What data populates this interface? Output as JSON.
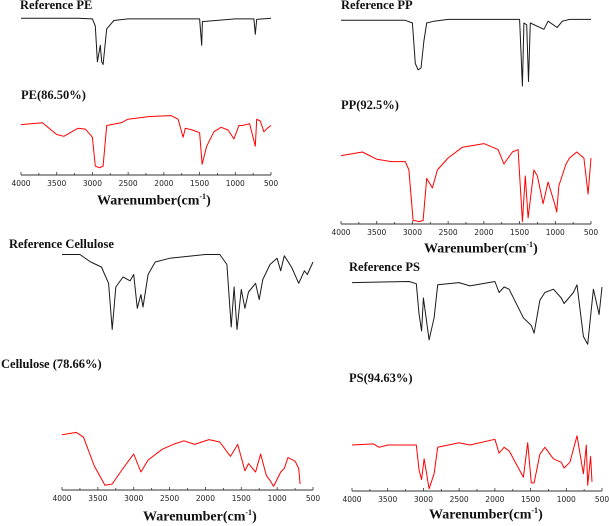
{
  "figure": {
    "xlabel_text": "Warenumber(cm",
    "xlabel_sup": "-1",
    "xlabel_close": ")",
    "colors": {
      "reference": "#1a1a1a",
      "sample": "#ff0000",
      "axis": "#333333"
    }
  },
  "chart_data": [
    {
      "type": "line",
      "panel": "PE",
      "xlabel": "Warenumber(cm-1)",
      "ylabel": "",
      "xlim": [
        4000,
        500
      ],
      "x_reversed": true,
      "xticks": [
        4000,
        3500,
        3000,
        2500,
        2000,
        1500,
        1000,
        500
      ],
      "grid": false,
      "legend": "inline labels above each trace",
      "series": [
        {
          "name": "Reference PE",
          "note": "relative transmittance (0=top of panel, 1=bottom), read from pixel position",
          "points": [
            [
              4000,
              0.06
            ],
            [
              3200,
              0.06
            ],
            [
              3000,
              0.07
            ],
            [
              2960,
              0.2
            ],
            [
              2930,
              0.85
            ],
            [
              2890,
              0.55
            ],
            [
              2870,
              0.85
            ],
            [
              2850,
              0.9
            ],
            [
              2800,
              0.25
            ],
            [
              2700,
              0.1
            ],
            [
              2500,
              0.07
            ],
            [
              1500,
              0.07
            ],
            [
              1470,
              0.55
            ],
            [
              1460,
              0.12
            ],
            [
              1000,
              0.07
            ],
            [
              740,
              0.07
            ],
            [
              720,
              0.35
            ],
            [
              700,
              0.08
            ],
            [
              500,
              0.06
            ]
          ]
        },
        {
          "name": "PE(86.50%)",
          "points": [
            [
              4000,
              0.44
            ],
            [
              3700,
              0.42
            ],
            [
              3500,
              0.55
            ],
            [
              3400,
              0.57
            ],
            [
              3200,
              0.48
            ],
            [
              3100,
              0.49
            ],
            [
              3000,
              0.58
            ],
            [
              2960,
              0.9
            ],
            [
              2900,
              0.92
            ],
            [
              2850,
              0.9
            ],
            [
              2800,
              0.45
            ],
            [
              2600,
              0.42
            ],
            [
              2500,
              0.38
            ],
            [
              2200,
              0.35
            ],
            [
              1900,
              0.34
            ],
            [
              1800,
              0.38
            ],
            [
              1730,
              0.58
            ],
            [
              1700,
              0.48
            ],
            [
              1600,
              0.5
            ],
            [
              1500,
              0.53
            ],
            [
              1465,
              0.88
            ],
            [
              1400,
              0.68
            ],
            [
              1300,
              0.52
            ],
            [
              1200,
              0.47
            ],
            [
              1100,
              0.5
            ],
            [
              1020,
              0.6
            ],
            [
              950,
              0.45
            ],
            [
              900,
              0.45
            ],
            [
              800,
              0.43
            ],
            [
              720,
              0.68
            ],
            [
              700,
              0.38
            ],
            [
              650,
              0.4
            ],
            [
              600,
              0.52
            ],
            [
              550,
              0.48
            ],
            [
              500,
              0.45
            ]
          ]
        }
      ]
    },
    {
      "type": "line",
      "panel": "PP",
      "xlabel": "Warenumber(cm-1)",
      "xlim": [
        4000,
        500
      ],
      "x_reversed": true,
      "xticks": [
        4000,
        3500,
        3000,
        2500,
        2000,
        1500,
        1000,
        500
      ],
      "grid": false,
      "series": [
        {
          "name": "Reference PP",
          "points": [
            [
              4000,
              0.07
            ],
            [
              3100,
              0.07
            ],
            [
              3000,
              0.1
            ],
            [
              2960,
              0.55
            ],
            [
              2920,
              0.62
            ],
            [
              2880,
              0.6
            ],
            [
              2840,
              0.3
            ],
            [
              2800,
              0.1
            ],
            [
              2700,
              0.08
            ],
            [
              2500,
              0.06
            ],
            [
              1500,
              0.06
            ],
            [
              1460,
              0.8
            ],
            [
              1440,
              0.1
            ],
            [
              1400,
              0.12
            ],
            [
              1375,
              0.75
            ],
            [
              1350,
              0.1
            ],
            [
              1160,
              0.17
            ],
            [
              1100,
              0.08
            ],
            [
              975,
              0.15
            ],
            [
              900,
              0.08
            ],
            [
              800,
              0.06
            ],
            [
              500,
              0.06
            ]
          ]
        },
        {
          "name": "PP(92.5%)",
          "points": [
            [
              4000,
              0.43
            ],
            [
              3700,
              0.4
            ],
            [
              3500,
              0.46
            ],
            [
              3300,
              0.48
            ],
            [
              3100,
              0.48
            ],
            [
              3050,
              0.55
            ],
            [
              2990,
              0.97
            ],
            [
              2900,
              0.98
            ],
            [
              2850,
              0.97
            ],
            [
              2800,
              0.62
            ],
            [
              2720,
              0.7
            ],
            [
              2650,
              0.55
            ],
            [
              2500,
              0.45
            ],
            [
              2300,
              0.36
            ],
            [
              2000,
              0.33
            ],
            [
              1800,
              0.38
            ],
            [
              1720,
              0.5
            ],
            [
              1600,
              0.4
            ],
            [
              1520,
              0.38
            ],
            [
              1460,
              0.98
            ],
            [
              1420,
              0.6
            ],
            [
              1380,
              0.95
            ],
            [
              1300,
              0.55
            ],
            [
              1250,
              0.6
            ],
            [
              1170,
              0.83
            ],
            [
              1100,
              0.65
            ],
            [
              1000,
              0.85
            ],
            [
              980,
              0.9
            ],
            [
              950,
              0.68
            ],
            [
              850,
              0.5
            ],
            [
              800,
              0.45
            ],
            [
              700,
              0.4
            ],
            [
              600,
              0.45
            ],
            [
              540,
              0.75
            ],
            [
              500,
              0.45
            ]
          ]
        }
      ]
    },
    {
      "type": "line",
      "panel": "Cellulose",
      "xlabel": "Warenumber(cm-1)",
      "xlim": [
        4000,
        500
      ],
      "x_reversed": true,
      "xticks": [
        4000,
        3500,
        3000,
        2500,
        2000,
        1500,
        1000,
        500
      ],
      "grid": false,
      "series": [
        {
          "name": "Reference Cellulose",
          "points": [
            [
              4000,
              0.02
            ],
            [
              3750,
              0.02
            ],
            [
              3600,
              0.08
            ],
            [
              3450,
              0.12
            ],
            [
              3350,
              0.25
            ],
            [
              3300,
              0.62
            ],
            [
              3250,
              0.28
            ],
            [
              3150,
              0.2
            ],
            [
              3050,
              0.23
            ],
            [
              3000,
              0.18
            ],
            [
              2950,
              0.45
            ],
            [
              2900,
              0.34
            ],
            [
              2870,
              0.44
            ],
            [
              2800,
              0.18
            ],
            [
              2700,
              0.08
            ],
            [
              2500,
              0.05
            ],
            [
              2000,
              0.02
            ],
            [
              1800,
              0.02
            ],
            [
              1700,
              0.1
            ],
            [
              1640,
              0.6
            ],
            [
              1600,
              0.28
            ],
            [
              1560,
              0.62
            ],
            [
              1500,
              0.3
            ],
            [
              1450,
              0.45
            ],
            [
              1400,
              0.32
            ],
            [
              1300,
              0.25
            ],
            [
              1250,
              0.38
            ],
            [
              1200,
              0.22
            ],
            [
              1100,
              0.1
            ],
            [
              1000,
              0.05
            ],
            [
              950,
              0.15
            ],
            [
              900,
              0.03
            ],
            [
              800,
              0.12
            ],
            [
              700,
              0.25
            ],
            [
              620,
              0.15
            ],
            [
              580,
              0.18
            ],
            [
              500,
              0.08
            ]
          ]
        },
        {
          "name": "Cellulose (78.66%)",
          "points": [
            [
              4000,
              0.54
            ],
            [
              3800,
              0.52
            ],
            [
              3700,
              0.56
            ],
            [
              3550,
              0.8
            ],
            [
              3400,
              0.96
            ],
            [
              3300,
              0.95
            ],
            [
              3150,
              0.82
            ],
            [
              3000,
              0.7
            ],
            [
              2900,
              0.85
            ],
            [
              2800,
              0.75
            ],
            [
              2600,
              0.66
            ],
            [
              2450,
              0.62
            ],
            [
              2300,
              0.59
            ],
            [
              2150,
              0.62
            ],
            [
              1950,
              0.58
            ],
            [
              1800,
              0.6
            ],
            [
              1650,
              0.72
            ],
            [
              1550,
              0.62
            ],
            [
              1450,
              0.84
            ],
            [
              1400,
              0.78
            ],
            [
              1300,
              0.85
            ],
            [
              1230,
              0.7
            ],
            [
              1150,
              0.88
            ],
            [
              1100,
              0.92
            ],
            [
              1050,
              0.97
            ],
            [
              950,
              0.85
            ],
            [
              900,
              0.82
            ],
            [
              850,
              0.73
            ],
            [
              750,
              0.76
            ],
            [
              700,
              0.82
            ],
            [
              680,
              0.95
            ]
          ]
        }
      ]
    },
    {
      "type": "line",
      "panel": "PS",
      "xlabel": "Warenumber(cm-1)",
      "xlim": [
        4000,
        500
      ],
      "x_reversed": true,
      "xticks": [
        4000,
        3500,
        3000,
        2500,
        2000,
        1500,
        1000,
        500
      ],
      "grid": false,
      "series": [
        {
          "name": "Reference PS",
          "points": [
            [
              4000,
              0.06
            ],
            [
              3200,
              0.05
            ],
            [
              3100,
              0.07
            ],
            [
              3060,
              0.35
            ],
            [
              3025,
              0.5
            ],
            [
              3000,
              0.2
            ],
            [
              2920,
              0.58
            ],
            [
              2850,
              0.38
            ],
            [
              2800,
              0.08
            ],
            [
              2500,
              0.06
            ],
            [
              2350,
              0.09
            ],
            [
              2000,
              0.05
            ],
            [
              1940,
              0.15
            ],
            [
              1870,
              0.1
            ],
            [
              1800,
              0.12
            ],
            [
              1600,
              0.38
            ],
            [
              1490,
              0.45
            ],
            [
              1450,
              0.52
            ],
            [
              1370,
              0.22
            ],
            [
              1300,
              0.15
            ],
            [
              1180,
              0.12
            ],
            [
              1070,
              0.2
            ],
            [
              1030,
              0.25
            ],
            [
              900,
              0.15
            ],
            [
              850,
              0.08
            ],
            [
              760,
              0.55
            ],
            [
              700,
              0.62
            ],
            [
              620,
              0.12
            ],
            [
              540,
              0.35
            ],
            [
              500,
              0.1
            ]
          ]
        },
        {
          "name": "PS(94.63%)",
          "points": [
            [
              4000,
              0.6
            ],
            [
              3700,
              0.59
            ],
            [
              3620,
              0.62
            ],
            [
              3500,
              0.6
            ],
            [
              3100,
              0.6
            ],
            [
              3060,
              0.82
            ],
            [
              3025,
              0.9
            ],
            [
              2990,
              0.72
            ],
            [
              2920,
              0.98
            ],
            [
              2850,
              0.85
            ],
            [
              2800,
              0.62
            ],
            [
              2500,
              0.58
            ],
            [
              2350,
              0.6
            ],
            [
              2000,
              0.55
            ],
            [
              1940,
              0.67
            ],
            [
              1870,
              0.62
            ],
            [
              1800,
              0.65
            ],
            [
              1600,
              0.88
            ],
            [
              1540,
              0.58
            ],
            [
              1490,
              0.93
            ],
            [
              1450,
              0.93
            ],
            [
              1370,
              0.68
            ],
            [
              1300,
              0.62
            ],
            [
              1180,
              0.72
            ],
            [
              1070,
              0.75
            ],
            [
              1030,
              0.8
            ],
            [
              950,
              0.75
            ],
            [
              850,
              0.52
            ],
            [
              760,
              0.85
            ],
            [
              720,
              0.6
            ],
            [
              700,
              0.95
            ],
            [
              660,
              0.7
            ],
            [
              640,
              0.92
            ]
          ]
        }
      ]
    }
  ],
  "panels": [
    {
      "id": "pe",
      "ref_title": "Reference PE",
      "sample_title": "PE(86.50%)"
    },
    {
      "id": "pp",
      "ref_title": "Reference PP",
      "sample_title": "PP(92.5%)"
    },
    {
      "id": "cellulose",
      "ref_title": "Reference Cellulose",
      "sample_title": "Cellulose (78.66%)"
    },
    {
      "id": "ps",
      "ref_title": "Reference PS",
      "sample_title": "PS(94.63%)"
    }
  ]
}
